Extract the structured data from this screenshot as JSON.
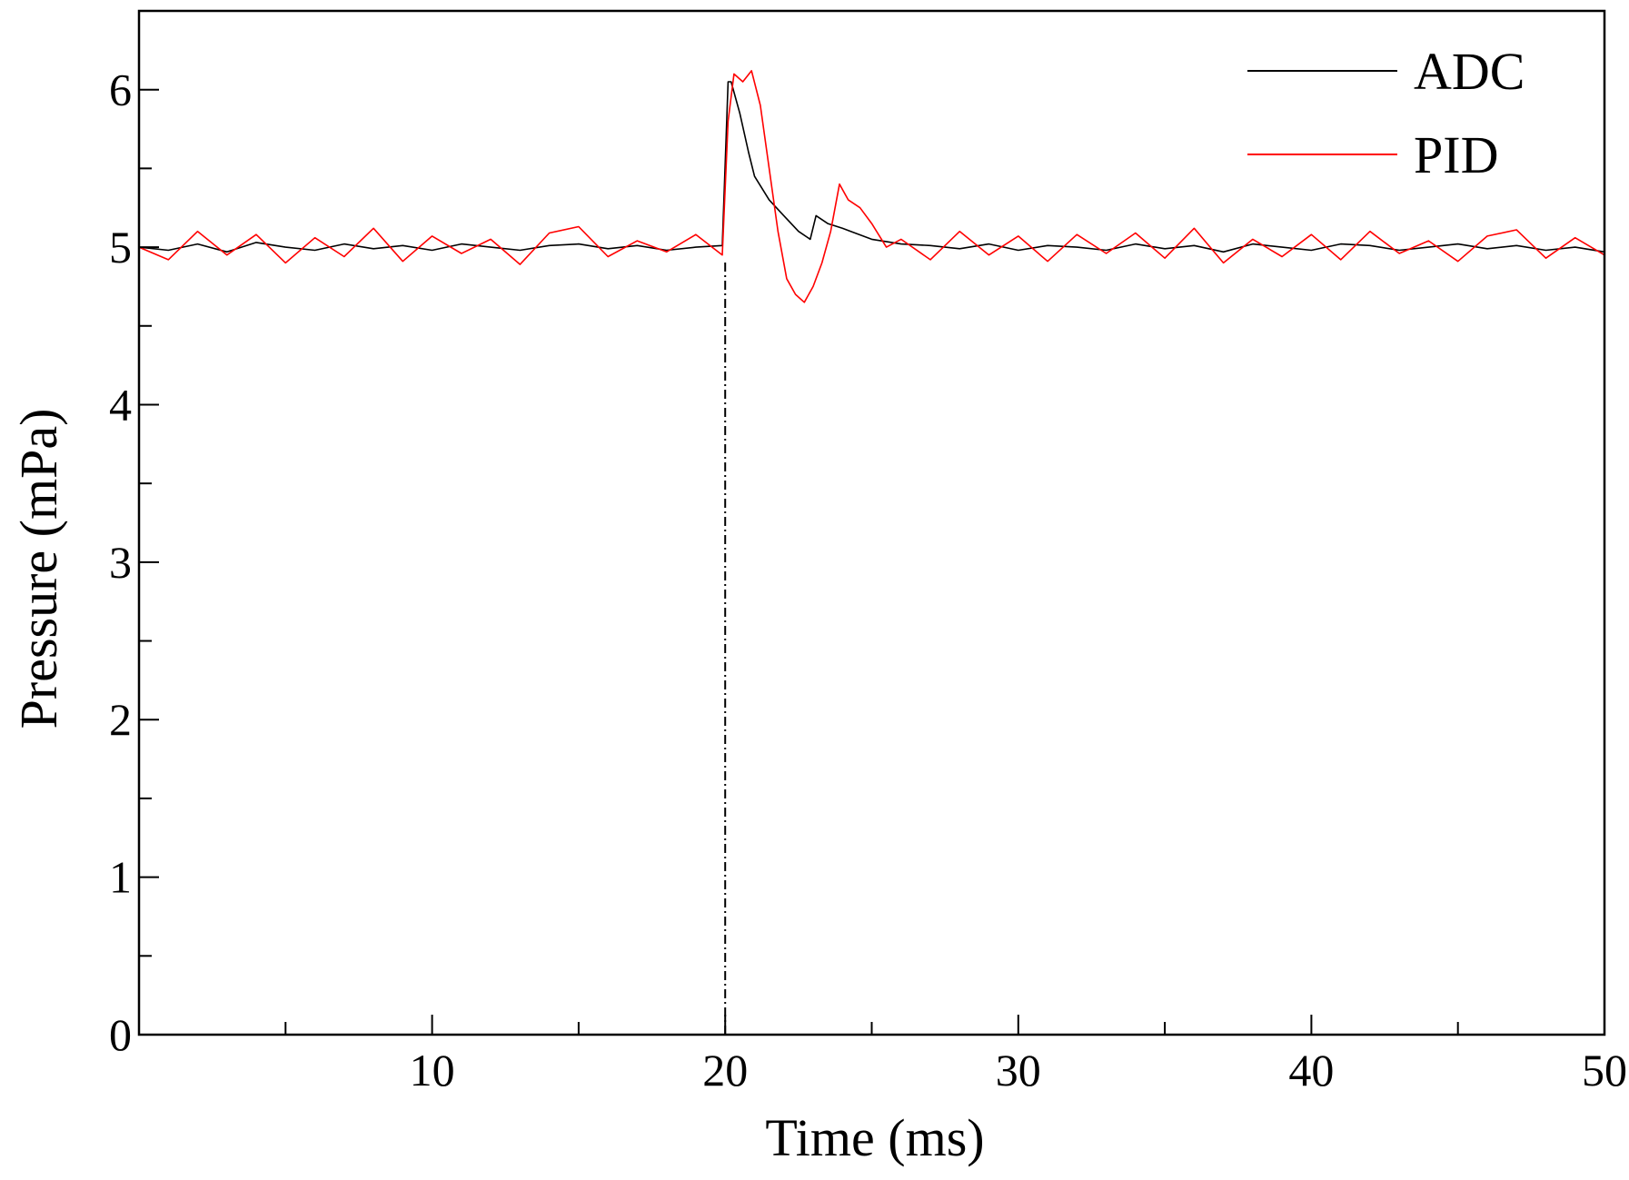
{
  "chart_data": {
    "type": "line",
    "title": "",
    "xlabel": "Time (ms)",
    "ylabel": "Pressure (mPa)",
    "xlim": [
      0,
      50
    ],
    "ylim": [
      0,
      6.5
    ],
    "x_ticks": [
      10,
      20,
      30,
      40,
      50
    ],
    "y_ticks": [
      0,
      1,
      2,
      3,
      4,
      5,
      6
    ],
    "x_minor_step": 5,
    "y_minor_step": 0.5,
    "grid": false,
    "legend_position": "top-right",
    "event_marker_x": 20,
    "event_marker_style": "dash-dot",
    "series": [
      {
        "name": "ADC",
        "color": "#000000",
        "x": [
          0,
          1,
          2,
          3,
          4,
          5,
          6,
          7,
          8,
          9,
          10,
          11,
          12,
          13,
          14,
          15,
          16,
          17,
          18,
          19,
          19.9,
          20.1,
          20.2,
          20.5,
          20.8,
          21.0,
          21.5,
          22.0,
          22.5,
          22.9,
          23.1,
          23.5,
          24.0,
          25.0,
          26.0,
          27.0,
          28.0,
          29.0,
          30.0,
          31.0,
          32.0,
          33.0,
          34.0,
          35.0,
          36.0,
          37.0,
          38.0,
          39.0,
          40.0,
          41.0,
          42.0,
          43.0,
          44.0,
          45.0,
          46.0,
          47.0,
          48.0,
          49.0,
          50.0
        ],
        "values": [
          5.0,
          4.98,
          5.02,
          4.97,
          5.03,
          5.0,
          4.98,
          5.02,
          4.99,
          5.01,
          4.98,
          5.02,
          5.0,
          4.98,
          5.01,
          5.02,
          4.99,
          5.01,
          4.98,
          5.0,
          5.01,
          6.05,
          6.05,
          5.85,
          5.6,
          5.45,
          5.3,
          5.2,
          5.1,
          5.05,
          5.2,
          5.15,
          5.12,
          5.05,
          5.02,
          5.01,
          4.99,
          5.02,
          4.98,
          5.01,
          5.0,
          4.98,
          5.02,
          4.99,
          5.01,
          4.97,
          5.02,
          5.0,
          4.98,
          5.02,
          5.01,
          4.98,
          5.0,
          5.02,
          4.99,
          5.01,
          4.98,
          5.0,
          4.97
        ]
      },
      {
        "name": "PID",
        "color": "#ff0000",
        "x": [
          0,
          1,
          2,
          3,
          4,
          5,
          6,
          7,
          8,
          9,
          10,
          11,
          12,
          13,
          14,
          15,
          16,
          17,
          18,
          19,
          19.9,
          20.1,
          20.3,
          20.6,
          20.9,
          21.2,
          21.5,
          21.8,
          22.1,
          22.4,
          22.7,
          23.0,
          23.3,
          23.6,
          23.9,
          24.2,
          24.6,
          25.0,
          25.5,
          26.0,
          27.0,
          28.0,
          29.0,
          30.0,
          31.0,
          32.0,
          33.0,
          34.0,
          35.0,
          36.0,
          37.0,
          38.0,
          39.0,
          40.0,
          41.0,
          42.0,
          43.0,
          44.0,
          45.0,
          46.0,
          47.0,
          48.0,
          49.0,
          50.0
        ],
        "values": [
          5.0,
          4.92,
          5.1,
          4.95,
          5.08,
          4.9,
          5.06,
          4.94,
          5.12,
          4.91,
          5.07,
          4.96,
          5.05,
          4.89,
          5.09,
          5.13,
          4.94,
          5.04,
          4.97,
          5.08,
          4.95,
          5.8,
          6.1,
          6.05,
          6.12,
          5.9,
          5.5,
          5.1,
          4.8,
          4.7,
          4.65,
          4.75,
          4.9,
          5.1,
          5.4,
          5.3,
          5.25,
          5.15,
          5.0,
          5.05,
          4.92,
          5.1,
          4.95,
          5.07,
          4.91,
          5.08,
          4.96,
          5.09,
          4.93,
          5.12,
          4.9,
          5.05,
          4.94,
          5.08,
          4.92,
          5.1,
          4.96,
          5.04,
          4.91,
          5.07,
          5.11,
          4.93,
          5.06,
          4.95
        ]
      }
    ]
  }
}
